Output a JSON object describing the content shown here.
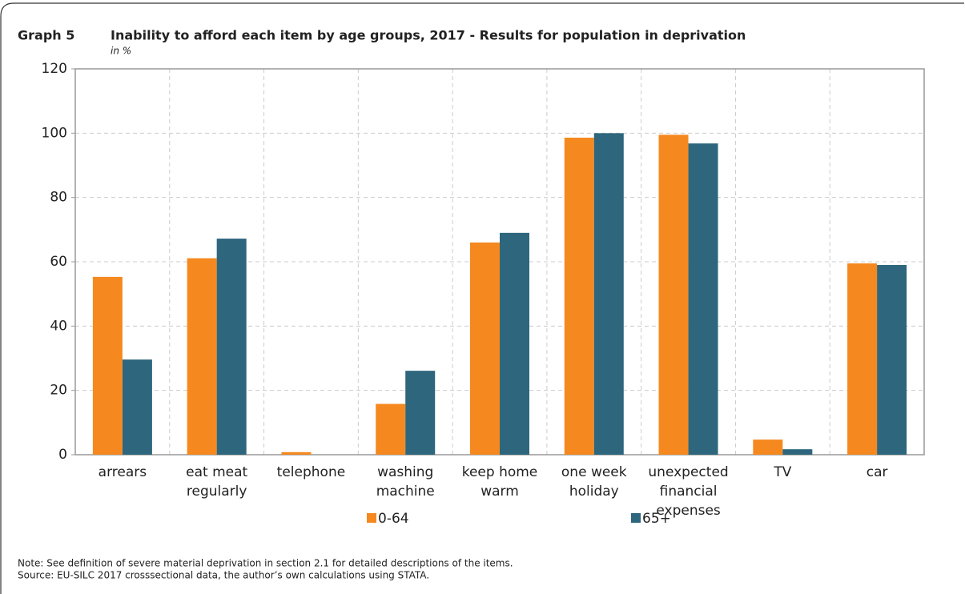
{
  "chart_data": {
    "type": "bar",
    "graph_label": "Graph 5",
    "title": "Inability to afford each item by age groups, 2017 - Results for population in deprivation",
    "subtitle": "in %",
    "categories": [
      "arrears",
      "eat meat regularly",
      "telephone",
      "washing machine",
      "keep home warm",
      "one week holiday",
      "unexpected financial expenses",
      "TV",
      "car"
    ],
    "series": [
      {
        "name": "0-64",
        "color": "#f5891f",
        "values": [
          55.3,
          61.1,
          0.8,
          15.8,
          66,
          98.6,
          99.5,
          4.7,
          59.5
        ]
      },
      {
        "name": "65+",
        "color": "#2d667d",
        "values": [
          29.6,
          67.2,
          0,
          26.1,
          69,
          100,
          96.8,
          1.7,
          59
        ]
      }
    ],
    "ylim": [
      0,
      120
    ],
    "yticks": [
      0,
      20,
      40,
      60,
      80,
      100,
      120
    ],
    "grid": true,
    "legend": "bottom",
    "notes": [
      "Note: See definition of severe material deprivation in section 2.1 for detailed descriptions of the items.",
      "Source: EU-SILC 2017 crosssectional data, the author’s own calculations using STATA."
    ]
  }
}
